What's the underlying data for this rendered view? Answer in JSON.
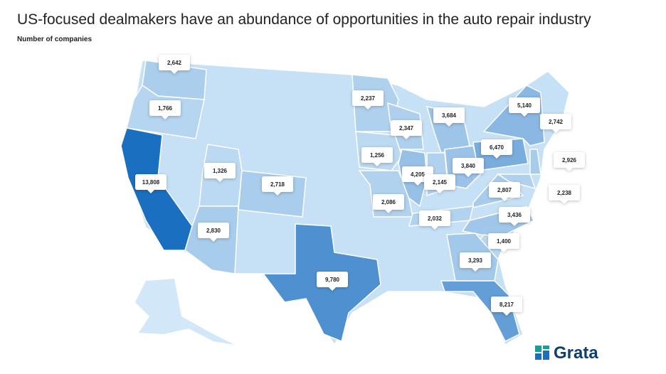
{
  "chart_data": {
    "type": "map",
    "title": "US-focused dealmakers have an abundance of opportunities in the auto repair industry",
    "subtitle": "Number of companies",
    "values": [
      2642,
      1766,
      13808,
      1326,
      2718,
      2830,
      9780,
      2237,
      2347,
      3684,
      1256,
      4205,
      2145,
      3840,
      2086,
      2032,
      6470,
      5140,
      2742,
      2926,
      2238,
      2807,
      3436,
      1400,
      3293,
      8217
    ],
    "value_labels": [
      "2,642",
      "1,766",
      "13,808",
      "1,326",
      "2,718",
      "2,830",
      "9,780",
      "2,237",
      "2,347",
      "3,684",
      "1,256",
      "4,205",
      "2,145",
      "3,840",
      "2,086",
      "2,032",
      "6,470",
      "5,140",
      "2,742",
      "2,926",
      "2,238",
      "2,807",
      "3,436",
      "1,400",
      "3,293",
      "8,217"
    ],
    "color": "#1b6fc0",
    "brand": "Grata"
  }
}
